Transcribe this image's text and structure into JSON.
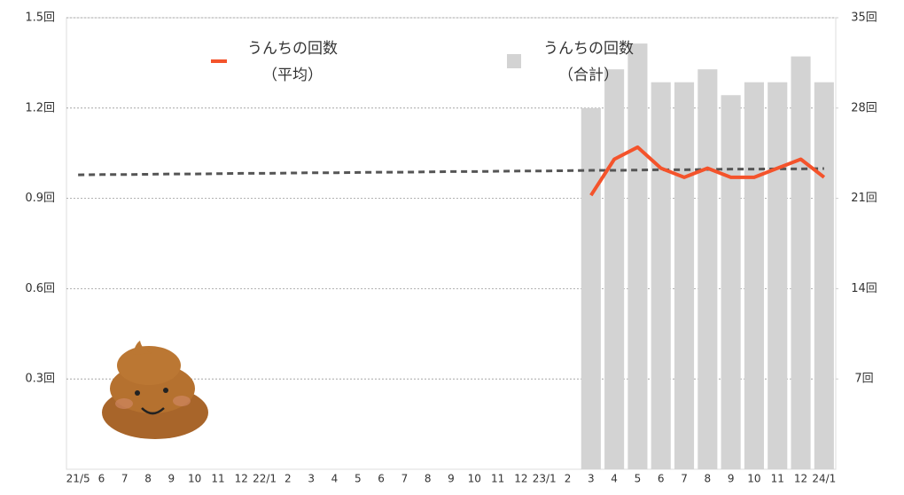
{
  "chart_data": {
    "type": "combo",
    "categories": [
      "21/5",
      "6",
      "7",
      "8",
      "9",
      "10",
      "11",
      "12",
      "22/1",
      "2",
      "3",
      "4",
      "5",
      "6",
      "7",
      "8",
      "9",
      "10",
      "11",
      "12",
      "23/1",
      "2",
      "3",
      "4",
      "5",
      "6",
      "7",
      "8",
      "9",
      "10",
      "11",
      "12",
      "24/1"
    ],
    "ylim": [
      0,
      1.5
    ],
    "yticks": [
      {
        "value": 0.3,
        "label": "0.3回"
      },
      {
        "value": 0.6,
        "label": "0.6回"
      },
      {
        "value": 0.9,
        "label": "0.9回"
      },
      {
        "value": 1.2,
        "label": "1.2回"
      },
      {
        "value": 1.5,
        "label": "1.5回"
      }
    ],
    "y2lim": [
      0,
      35
    ],
    "y2ticks": [
      {
        "value": 7,
        "label": "7回"
      },
      {
        "value": 14,
        "label": "14回"
      },
      {
        "value": 21,
        "label": "21回"
      },
      {
        "value": 28,
        "label": "28回"
      },
      {
        "value": 35,
        "label": "35回"
      }
    ],
    "grid": true,
    "series": [
      {
        "name": "うんちの回数\n（平均）",
        "type": "line",
        "color": "#f4532b",
        "values": [
          null,
          null,
          null,
          null,
          null,
          null,
          null,
          null,
          null,
          null,
          null,
          null,
          null,
          null,
          null,
          null,
          null,
          null,
          null,
          null,
          null,
          null,
          0.91,
          1.03,
          1.07,
          1.0,
          0.97,
          1.0,
          0.97,
          0.97,
          1.0,
          1.03,
          0.97
        ]
      },
      {
        "name": "うんちの回数\n（合計）",
        "type": "bar",
        "axis": "y2",
        "color": "#d3d3d3",
        "values": [
          null,
          null,
          null,
          null,
          null,
          null,
          null,
          null,
          null,
          null,
          null,
          null,
          null,
          null,
          null,
          null,
          null,
          null,
          null,
          null,
          null,
          null,
          28,
          31,
          33,
          30,
          30,
          31,
          29,
          30,
          30,
          32,
          30
        ]
      },
      {
        "type": "dashed-line",
        "color": "#555555",
        "values": [
          0.978,
          0.979,
          0.979,
          0.98,
          0.981,
          0.981,
          0.982,
          0.983,
          0.983,
          0.984,
          0.985,
          0.985,
          0.986,
          0.987,
          0.987,
          0.988,
          0.989,
          0.989,
          0.99,
          0.991,
          0.991,
          0.992,
          0.993,
          0.993,
          0.994,
          0.995,
          0.995,
          0.996,
          0.997,
          0.997,
          0.998,
          0.998,
          0.999
        ]
      }
    ]
  }
}
